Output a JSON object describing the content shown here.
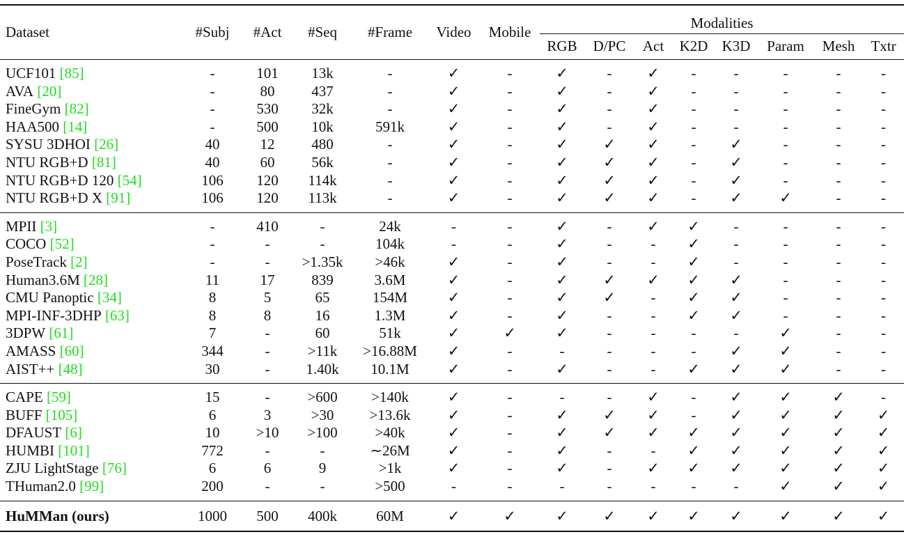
{
  "table": {
    "header": [
      "Dataset",
      "#Subj",
      "#Act",
      "#Seq",
      "#Frame",
      "Video",
      "Mobile"
    ],
    "modalities": "Modalities",
    "subheader": [
      "RGB",
      "D/PC",
      "Act",
      "K2D",
      "K3D",
      "Param",
      "Mesh",
      "Txtr"
    ],
    "groups": [
      [
        {
          "name": "UCF101",
          "ref": "[85]",
          "cells": [
            "-",
            "101",
            "13k",
            "-",
            "✓",
            "-",
            "✓",
            "-",
            "✓",
            "-",
            "-",
            "-",
            "-",
            "-"
          ]
        },
        {
          "name": "AVA",
          "ref": "[20]",
          "cells": [
            "-",
            "80",
            "437",
            "-",
            "✓",
            "-",
            "✓",
            "-",
            "✓",
            "-",
            "-",
            "-",
            "-",
            "-"
          ]
        },
        {
          "name": "FineGym",
          "ref": "[82]",
          "cells": [
            "-",
            "530",
            "32k",
            "-",
            "✓",
            "-",
            "✓",
            "-",
            "✓",
            "-",
            "-",
            "-",
            "-",
            "-"
          ]
        },
        {
          "name": "HAA500",
          "ref": "[14]",
          "cells": [
            "-",
            "500",
            "10k",
            "591k",
            "✓",
            "-",
            "✓",
            "-",
            "✓",
            "-",
            "-",
            "-",
            "-",
            "-"
          ]
        },
        {
          "name": "SYSU 3DHOI",
          "ref": "[26]",
          "cells": [
            "40",
            "12",
            "480",
            "-",
            "✓",
            "-",
            "✓",
            "✓",
            "✓",
            "-",
            "✓",
            "-",
            "-",
            "-"
          ]
        },
        {
          "name": "NTU RGB+D",
          "ref": "[81]",
          "cells": [
            "40",
            "60",
            "56k",
            "-",
            "✓",
            "-",
            "✓",
            "✓",
            "✓",
            "-",
            "✓",
            "-",
            "-",
            "-"
          ]
        },
        {
          "name": "NTU RGB+D 120",
          "ref": "[54]",
          "cells": [
            "106",
            "120",
            "114k",
            "-",
            "✓",
            "-",
            "✓",
            "✓",
            "✓",
            "-",
            "✓",
            "-",
            "-",
            "-"
          ]
        },
        {
          "name": "NTU RGB+D X",
          "ref": "[91]",
          "cells": [
            "106",
            "120",
            "113k",
            "-",
            "✓",
            "-",
            "✓",
            "✓",
            "✓",
            "-",
            "✓",
            "✓",
            "-",
            "-"
          ]
        }
      ],
      [
        {
          "name": "MPII",
          "ref": "[3]",
          "cells": [
            "-",
            "410",
            "-",
            "24k",
            "-",
            "-",
            "✓",
            "-",
            "✓",
            "✓",
            "-",
            "-",
            "-",
            "-"
          ]
        },
        {
          "name": "COCO",
          "ref": "[52]",
          "cells": [
            "-",
            "-",
            "-",
            "104k",
            "-",
            "-",
            "✓",
            "-",
            "-",
            "✓",
            "-",
            "-",
            "-",
            "-"
          ]
        },
        {
          "name": "PoseTrack",
          "ref": "[2]",
          "cells": [
            "-",
            "-",
            ">1.35k",
            ">46k",
            "✓",
            "-",
            "✓",
            "-",
            "-",
            "✓",
            "-",
            "-",
            "-",
            "-"
          ]
        },
        {
          "name": "Human3.6M",
          "ref": "[28]",
          "cells": [
            "11",
            "17",
            "839",
            "3.6M",
            "✓",
            "-",
            "✓",
            "✓",
            "✓",
            "✓",
            "✓",
            "-",
            "-",
            "-"
          ]
        },
        {
          "name": "CMU Panoptic",
          "ref": "[34]",
          "cells": [
            "8",
            "5",
            "65",
            "154M",
            "✓",
            "-",
            "✓",
            "✓",
            "-",
            "✓",
            "✓",
            "-",
            "-",
            "-"
          ]
        },
        {
          "name": "MPI-INF-3DHP",
          "ref": "[63]",
          "cells": [
            "8",
            "8",
            "16",
            "1.3M",
            "✓",
            "-",
            "✓",
            "-",
            "-",
            "✓",
            "✓",
            "-",
            "-",
            "-"
          ]
        },
        {
          "name": "3DPW",
          "ref": "[61]",
          "cells": [
            "7",
            "-",
            "60",
            "51k",
            "✓",
            "✓",
            "✓",
            "-",
            "-",
            "-",
            "-",
            "✓",
            "-",
            "-"
          ]
        },
        {
          "name": "AMASS",
          "ref": "[60]",
          "cells": [
            "344",
            "-",
            ">11k",
            ">16.88M",
            "✓",
            "-",
            "-",
            "-",
            "-",
            "-",
            "✓",
            "✓",
            "-",
            "-"
          ]
        },
        {
          "name": "AIST++",
          "ref": "[48]",
          "cells": [
            "30",
            "-",
            "1.40k",
            "10.1M",
            "✓",
            "-",
            "✓",
            "-",
            "-",
            "✓",
            "✓",
            "✓",
            "-",
            "-"
          ]
        }
      ],
      [
        {
          "name": "CAPE",
          "ref": "[59]",
          "cells": [
            "15",
            "-",
            ">600",
            ">140k",
            "✓",
            "-",
            "-",
            "-",
            "✓",
            "-",
            "✓",
            "✓",
            "✓",
            "-"
          ]
        },
        {
          "name": "BUFF",
          "ref": "[105]",
          "cells": [
            "6",
            "3",
            ">30",
            ">13.6k",
            "✓",
            "-",
            "✓",
            "✓",
            "✓",
            "-",
            "✓",
            "✓",
            "✓",
            "✓"
          ]
        },
        {
          "name": "DFAUST",
          "ref": "[6]",
          "cells": [
            "10",
            ">10",
            ">100",
            ">40k",
            "✓",
            "-",
            "✓",
            "✓",
            "✓",
            "✓",
            "✓",
            "✓",
            "✓",
            "✓"
          ]
        },
        {
          "name": "HUMBI",
          "ref": "[101]",
          "cells": [
            "772",
            "-",
            "-",
            "∼26M",
            "✓",
            "-",
            "✓",
            "-",
            "-",
            "✓",
            "✓",
            "✓",
            "✓",
            "✓"
          ]
        },
        {
          "name": "ZJU LightStage",
          "ref": "[76]",
          "cells": [
            "6",
            "6",
            "9",
            ">1k",
            "✓",
            "-",
            "✓",
            "-",
            "✓",
            "✓",
            "✓",
            "✓",
            "✓",
            "✓"
          ]
        },
        {
          "name": "THuman2.0",
          "ref": "[99]",
          "cells": [
            "200",
            "-",
            "-",
            ">500",
            "-",
            "-",
            "-",
            "-",
            "-",
            "-",
            "-",
            "✓",
            "✓",
            "✓"
          ]
        }
      ]
    ],
    "ours": {
      "name": "HuMMan (ours)",
      "cells": [
        "1000",
        "500",
        "400k",
        "60M",
        "✓",
        "✓",
        "✓",
        "✓",
        "✓",
        "✓",
        "✓",
        "✓",
        "✓",
        "✓"
      ]
    }
  }
}
